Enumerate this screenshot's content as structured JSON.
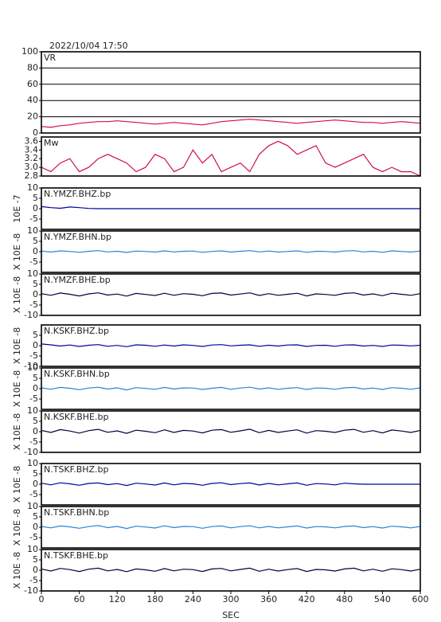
{
  "chart_data": {
    "type": "line",
    "title": "2022/10/04  17:50",
    "xlabel": "SEC",
    "xlim": [
      0,
      600
    ],
    "xticks": [
      0,
      60,
      120,
      180,
      240,
      300,
      360,
      420,
      480,
      540,
      600
    ],
    "x": [
      0,
      15,
      30,
      45,
      60,
      75,
      90,
      105,
      120,
      135,
      150,
      165,
      180,
      195,
      210,
      225,
      240,
      255,
      270,
      285,
      300,
      315,
      330,
      345,
      360,
      375,
      390,
      405,
      420,
      435,
      450,
      465,
      480,
      495,
      510,
      525,
      540,
      555,
      570,
      585,
      600
    ],
    "panels": [
      {
        "name": "VR",
        "ylim": [
          0,
          100
        ],
        "yticks": [
          0,
          20,
          40,
          60,
          80,
          100
        ],
        "grid": true,
        "color": "#d0104a",
        "values": [
          8,
          7,
          9,
          10,
          12,
          13,
          14,
          14,
          15,
          14,
          13,
          12,
          11,
          12,
          13,
          12,
          11,
          10,
          12,
          14,
          15,
          16,
          17,
          16,
          15,
          14,
          13,
          12,
          13,
          14,
          15,
          16,
          15,
          14,
          13,
          13,
          12,
          13,
          14,
          13,
          12
        ]
      },
      {
        "name": "Mw",
        "ylim": [
          2.8,
          3.7
        ],
        "yticks": [
          2.8,
          {
            "value": 3,
            "label": "3.0"
          },
          3.2,
          3.4,
          3.6
        ],
        "grid": false,
        "color": "#d0104a",
        "values": [
          3.0,
          2.9,
          3.1,
          3.2,
          2.9,
          3.0,
          3.2,
          3.3,
          3.2,
          3.1,
          2.9,
          3.0,
          3.3,
          3.2,
          2.9,
          3.0,
          3.4,
          3.1,
          3.3,
          2.9,
          3.0,
          3.1,
          2.9,
          3.3,
          3.5,
          3.6,
          3.5,
          3.3,
          3.4,
          3.5,
          3.1,
          3.0,
          3.1,
          3.2,
          3.3,
          3.0,
          2.9,
          3.0,
          2.9,
          2.9,
          2.8
        ]
      },
      {
        "name": "N.YMZF.BHZ.bp",
        "ylabel": "10E -7",
        "ylim": [
          -10,
          10
        ],
        "yticks": [
          -5,
          0,
          5,
          10
        ],
        "grid": false,
        "color": "#0000a0",
        "values": [
          1,
          0.5,
          0.2,
          0.8,
          0.5,
          0.1,
          0,
          0,
          0,
          0,
          0,
          0,
          0,
          0,
          0,
          0,
          0,
          0,
          0,
          0,
          0,
          0,
          0,
          0,
          0,
          0,
          0,
          0,
          0,
          0,
          0,
          0,
          0,
          0,
          0,
          0,
          0,
          0,
          0,
          0,
          0
        ]
      },
      {
        "name": "N.YMZF.BHN.bp",
        "ylabel": "X 10E -8",
        "ylim": [
          -10,
          10
        ],
        "yticks": [
          -5,
          0,
          5,
          10
        ],
        "grid": false,
        "color": "#2a82d8",
        "values": [
          0.3,
          -0.2,
          0.4,
          0.1,
          -0.3,
          0.2,
          0.5,
          -0.1,
          0.2,
          -0.4,
          0.3,
          0.1,
          -0.2,
          0.4,
          -0.1,
          0.2,
          0.3,
          -0.3,
          0.1,
          0.4,
          -0.2,
          0.2,
          0.5,
          -0.1,
          0.3,
          -0.2,
          0.1,
          0.4,
          -0.3,
          0.2,
          0.1,
          -0.2,
          0.3,
          0.5,
          -0.1,
          0.2,
          -0.3,
          0.4,
          0.1,
          -0.2,
          0.3
        ]
      },
      {
        "name": "N.YMZF.BHE.bp",
        "ylabel": "X 10E -8",
        "ylim": [
          -10,
          10
        ],
        "yticks": [
          -10,
          -5,
          0,
          5,
          10
        ],
        "grid": false,
        "color": "#000040",
        "values": [
          0.5,
          -0.3,
          0.8,
          0.2,
          -0.6,
          0.4,
          0.9,
          -0.2,
          0.3,
          -0.7,
          0.6,
          0.1,
          -0.4,
          0.7,
          -0.3,
          0.5,
          0.2,
          -0.5,
          0.6,
          0.8,
          -0.2,
          0.3,
          0.9,
          -0.4,
          0.5,
          -0.3,
          0.2,
          0.7,
          -0.6,
          0.4,
          0.1,
          -0.3,
          0.6,
          0.9,
          -0.2,
          0.4,
          -0.5,
          0.7,
          0.2,
          -0.3,
          0.5
        ]
      },
      {
        "name": "N.KSKF.BHZ.bp",
        "ylabel": "X 10E -8",
        "ylim": [
          -10,
          10
        ],
        "yticks": [
          -10,
          -5,
          0,
          5
        ],
        "grid": false,
        "color": "#0000a0",
        "values": [
          0.8,
          0.4,
          -0.2,
          0.3,
          -0.4,
          0.2,
          0.5,
          -0.3,
          0.1,
          -0.5,
          0.4,
          0.2,
          -0.3,
          0.3,
          -0.2,
          0.4,
          0.1,
          -0.4,
          0.3,
          0.5,
          -0.1,
          0.2,
          0.4,
          -0.3,
          0.2,
          -0.2,
          0.3,
          0.4,
          -0.4,
          0.1,
          0.2,
          -0.3,
          0.3,
          0.4,
          -0.2,
          0.1,
          -0.4,
          0.3,
          0.2,
          -0.1,
          0.2
        ]
      },
      {
        "name": "N.KSKF.BHN.bp",
        "ylabel": "X 10E -8",
        "ylim": [
          -10,
          10
        ],
        "yticks": [
          -5,
          0,
          5,
          10
        ],
        "grid": false,
        "color": "#2a82d8",
        "values": [
          0.4,
          -0.3,
          0.6,
          0.2,
          -0.5,
          0.3,
          0.7,
          -0.2,
          0.4,
          -0.6,
          0.5,
          0.1,
          -0.3,
          0.6,
          -0.2,
          0.4,
          0.3,
          -0.4,
          0.2,
          0.6,
          -0.3,
          0.3,
          0.7,
          -0.2,
          0.4,
          -0.3,
          0.2,
          0.5,
          -0.4,
          0.3,
          0.2,
          -0.3,
          0.4,
          0.6,
          -0.2,
          0.3,
          -0.4,
          0.5,
          0.2,
          -0.3,
          0.4
        ]
      },
      {
        "name": "N.KSKF.BHE.bp",
        "ylabel": "X 10E -8",
        "ylim": [
          -10,
          10
        ],
        "yticks": [
          -10,
          -5,
          0,
          5,
          10
        ],
        "grid": false,
        "color": "#000040",
        "values": [
          0.6,
          -0.4,
          1.0,
          0.3,
          -0.7,
          0.5,
          1.1,
          -0.3,
          0.4,
          -0.8,
          0.7,
          0.2,
          -0.5,
          0.9,
          -0.4,
          0.6,
          0.3,
          -0.6,
          0.7,
          1.0,
          -0.3,
          0.4,
          1.2,
          -0.5,
          0.6,
          -0.4,
          0.3,
          0.9,
          -0.7,
          0.5,
          0.2,
          -0.4,
          0.7,
          1.1,
          -0.3,
          0.5,
          -0.6,
          0.8,
          0.3,
          -0.4,
          0.6
        ]
      },
      {
        "name": "N.TSKF.BHZ.bp",
        "ylabel": "X 10E -8",
        "ylim": [
          -10,
          10
        ],
        "yticks": [
          -5,
          0,
          5,
          10
        ],
        "grid": false,
        "color": "#0000a0",
        "values": [
          0.5,
          -0.3,
          0.7,
          0.2,
          -0.5,
          0.4,
          0.6,
          -0.2,
          0.3,
          -0.6,
          0.5,
          0.1,
          -0.4,
          0.6,
          -0.3,
          0.4,
          0.2,
          -0.5,
          0.4,
          0.7,
          -0.2,
          0.3,
          0.6,
          -0.4,
          0.4,
          -0.3,
          0.2,
          0.6,
          -0.5,
          0.3,
          0.1,
          -0.3,
          0.5,
          0.2,
          0,
          0,
          0,
          0,
          0,
          0,
          0
        ]
      },
      {
        "name": "N.TSKF.BHN.bp",
        "ylabel": "X 10E -8",
        "ylim": [
          -10,
          10
        ],
        "yticks": [
          -5,
          0,
          5,
          10
        ],
        "grid": false,
        "color": "#2a82d8",
        "values": [
          0.4,
          -0.3,
          0.6,
          0.2,
          -0.5,
          0.3,
          0.8,
          -0.2,
          0.4,
          -0.6,
          0.5,
          0.1,
          -0.4,
          0.7,
          -0.2,
          0.4,
          0.3,
          -0.5,
          0.3,
          0.6,
          -0.3,
          0.3,
          0.7,
          -0.3,
          0.4,
          -0.3,
          0.2,
          0.6,
          -0.4,
          0.3,
          0.2,
          -0.3,
          0.4,
          0.6,
          -0.2,
          0.3,
          -0.4,
          0.5,
          0.2,
          -0.3,
          0.4
        ]
      },
      {
        "name": "N.TSKF.BHE.bp",
        "ylabel": "X 10E -8",
        "ylim": [
          -10,
          10
        ],
        "yticks": [
          -10,
          -5,
          0,
          5,
          10
        ],
        "grid": false,
        "color": "#000040",
        "values": [
          0.6,
          -0.4,
          0.9,
          0.3,
          -0.6,
          0.5,
          1.0,
          -0.3,
          0.4,
          -0.7,
          0.6,
          0.2,
          -0.5,
          0.8,
          -0.3,
          0.5,
          0.3,
          -0.6,
          0.6,
          0.9,
          -0.3,
          0.4,
          1.0,
          -0.5,
          0.5,
          -0.4,
          0.3,
          0.8,
          -0.6,
          0.4,
          0.2,
          -0.4,
          0.6,
          1.0,
          -0.3,
          0.5,
          -0.5,
          0.7,
          0.3,
          -0.4,
          0.5
        ]
      }
    ]
  }
}
